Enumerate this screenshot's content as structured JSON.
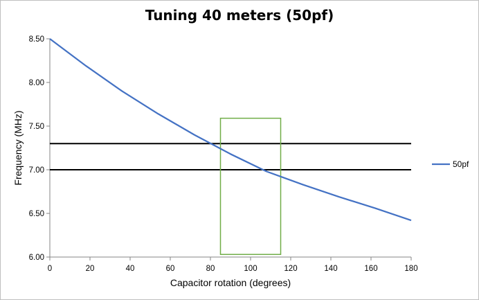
{
  "chart_data": {
    "type": "line",
    "title": "Tuning 40 meters (50pf)",
    "xlabel": "Capacitor rotation (degrees)",
    "ylabel": "Frequency (MHz)",
    "xlim": [
      0,
      180
    ],
    "ylim": [
      6.0,
      8.5
    ],
    "x_ticks": [
      0,
      20,
      40,
      60,
      80,
      100,
      120,
      140,
      160,
      180
    ],
    "y_ticks": [
      "6.00",
      "6.50",
      "7.00",
      "7.50",
      "8.00",
      "8.50"
    ],
    "grid": false,
    "legend_position": "right",
    "series": [
      {
        "name": "50pf",
        "color": "#4472c4",
        "x": [
          0,
          18,
          36,
          54,
          72,
          90,
          108,
          126,
          144,
          162,
          180
        ],
        "y": [
          8.5,
          8.19,
          7.9,
          7.64,
          7.4,
          7.18,
          6.98,
          6.83,
          6.69,
          6.56,
          6.42
        ]
      }
    ],
    "reference_lines": [
      {
        "y": 7.3,
        "color": "#000000"
      },
      {
        "y": 7.0,
        "color": "#000000"
      }
    ],
    "highlight_box": {
      "x_range": [
        85,
        115
      ],
      "y_range": [
        6.03,
        7.59
      ],
      "color": "#70ad47"
    }
  }
}
